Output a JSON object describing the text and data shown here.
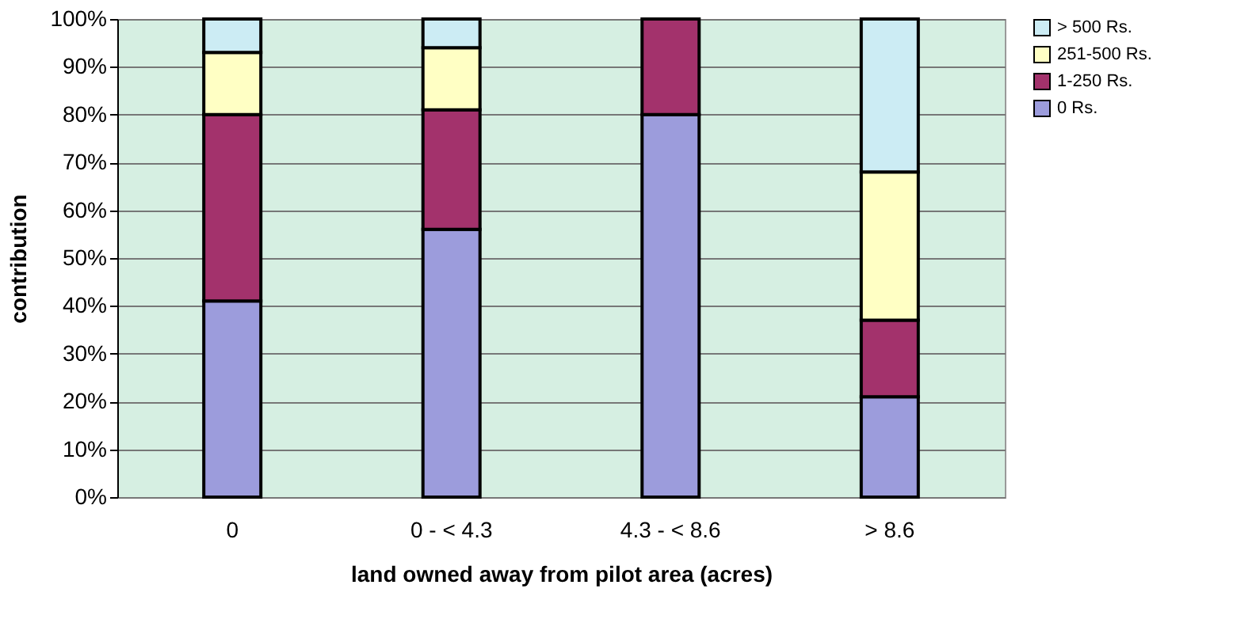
{
  "chart_data": {
    "type": "bar",
    "stacked": true,
    "xlabel": "land owned away from pilot area (acres)",
    "ylabel": "contribution",
    "categories": [
      "0",
      "0 - < 4.3",
      "4.3 - < 8.6",
      "> 8.6"
    ],
    "series": [
      {
        "name": "0 Rs.",
        "color": "#9c9cdc",
        "values": [
          41,
          56,
          80,
          21
        ]
      },
      {
        "name": "1-250 Rs.",
        "color": "#a3326c",
        "values": [
          39,
          25,
          20,
          16
        ]
      },
      {
        "name": "251-500 Rs.",
        "color": "#ffffc4",
        "values": [
          13,
          13,
          0,
          31
        ]
      },
      {
        "name": "> 500 Rs.",
        "color": "#ccecf4",
        "values": [
          7,
          6,
          0,
          32
        ]
      }
    ],
    "ylim": [
      0,
      100
    ],
    "yticks": [
      {
        "value": 0,
        "label": "0%"
      },
      {
        "value": 10,
        "label": "10%"
      },
      {
        "value": 20,
        "label": "20%"
      },
      {
        "value": 30,
        "label": "30%"
      },
      {
        "value": 40,
        "label": "40%"
      },
      {
        "value": 50,
        "label": "50%"
      },
      {
        "value": 60,
        "label": "60%"
      },
      {
        "value": 70,
        "label": "70%"
      },
      {
        "value": 80,
        "label": "80%"
      },
      {
        "value": 90,
        "label": "90%"
      },
      {
        "value": 100,
        "label": "100%"
      }
    ],
    "grid": "y",
    "legend": "right"
  }
}
